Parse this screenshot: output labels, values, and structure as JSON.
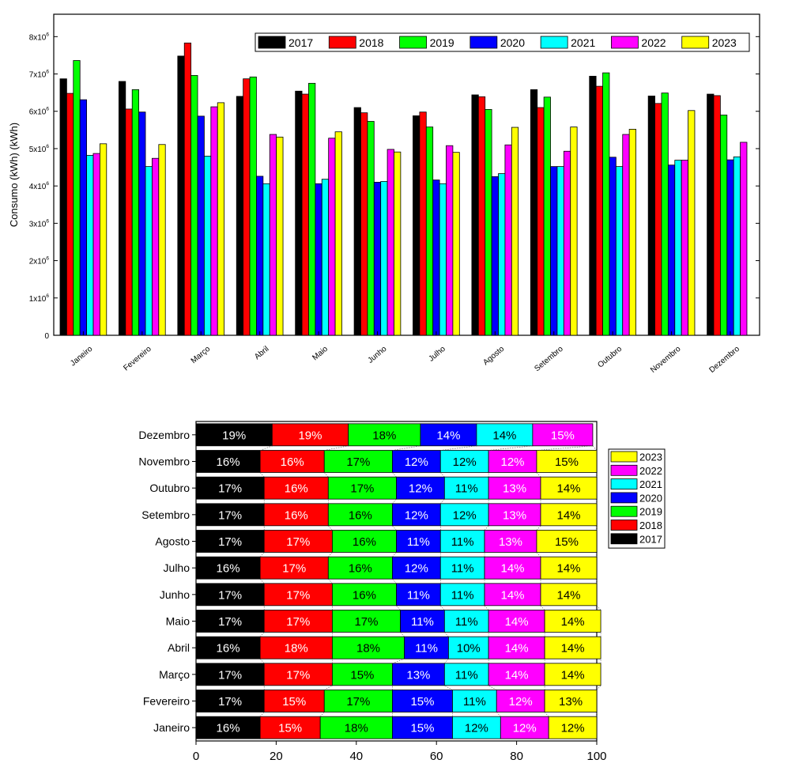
{
  "colors": {
    "2017": "#000000",
    "2018": "#ff0000",
    "2019": "#00ff00",
    "2020": "#0000ff",
    "2021": "#00ffff",
    "2022": "#ff00ff",
    "2023": "#ffff00"
  },
  "chart_data": [
    {
      "type": "bar",
      "ylabel": "Consumo (kWh) (kWh)",
      "ylim": [
        0,
        8600000
      ],
      "y_ticks": [
        0,
        1000000,
        2000000,
        3000000,
        4000000,
        5000000,
        6000000,
        7000000,
        8000000
      ],
      "y_tick_labels": [
        "0",
        "1x10",
        "2x10",
        "3x10",
        "4x10",
        "5x10",
        "6x10",
        "7x10",
        "8x10"
      ],
      "y_tick_exponent": "6",
      "legend_position": "top-right",
      "categories": [
        "Janeiro",
        "Fevereiro",
        "Março",
        "Abril",
        "Maio",
        "Junho",
        "Julho",
        "Agosto",
        "Setembro",
        "Outubro",
        "Novembro",
        "Dezembro"
      ],
      "series": [
        {
          "name": "2017",
          "values": [
            6870000,
            6800000,
            7480000,
            6400000,
            6540000,
            6100000,
            5880000,
            6440000,
            6580000,
            6940000,
            6410000,
            6460000
          ]
        },
        {
          "name": "2018",
          "values": [
            6480000,
            6060000,
            7830000,
            6870000,
            6460000,
            5960000,
            5980000,
            6390000,
            6100000,
            6670000,
            6210000,
            6420000
          ]
        },
        {
          "name": "2019",
          "values": [
            7360000,
            6580000,
            6960000,
            6920000,
            6750000,
            5730000,
            5580000,
            6050000,
            6380000,
            7030000,
            6490000,
            5900000
          ]
        },
        {
          "name": "2020",
          "values": [
            6310000,
            5980000,
            5870000,
            4260000,
            4060000,
            4100000,
            4160000,
            4250000,
            4520000,
            4770000,
            4560000,
            4700000
          ]
        },
        {
          "name": "2021",
          "values": [
            4820000,
            4520000,
            4800000,
            4060000,
            4180000,
            4120000,
            4060000,
            4330000,
            4520000,
            4520000,
            4690000,
            4780000
          ]
        },
        {
          "name": "2022",
          "values": [
            4870000,
            4740000,
            6120000,
            5380000,
            5280000,
            4980000,
            5080000,
            5100000,
            4930000,
            5380000,
            4690000,
            5170000
          ]
        },
        {
          "name": "2023",
          "values": [
            5130000,
            5110000,
            6230000,
            5310000,
            5450000,
            4910000,
            4900000,
            5570000,
            5580000,
            5520000,
            6020000,
            null
          ]
        }
      ]
    },
    {
      "type": "bar",
      "orientation": "horizontal",
      "stacked": "percent",
      "xlim": [
        0,
        100
      ],
      "x_ticks": [
        0,
        20,
        40,
        60,
        80,
        100
      ],
      "legend_position": "right",
      "categories": [
        "Janeiro",
        "Fevereiro",
        "Março",
        "Abril",
        "Maio",
        "Junho",
        "Julho",
        "Agosto",
        "Setembro",
        "Outubro",
        "Novembro",
        "Dezembro"
      ],
      "series": [
        {
          "name": "2017",
          "values": [
            16,
            17,
            17,
            16,
            17,
            17,
            16,
            17,
            17,
            17,
            16,
            19
          ],
          "labels": [
            "16%",
            "17%",
            "17%",
            "16%",
            "17%",
            "17%",
            "16%",
            "17%",
            "17%",
            "17%",
            "16%",
            "19%"
          ]
        },
        {
          "name": "2018",
          "values": [
            15,
            15,
            17,
            18,
            17,
            17,
            17,
            17,
            16,
            16,
            16,
            19
          ],
          "labels": [
            "15%",
            "15%",
            "17%",
            "18%",
            "17%",
            "17%",
            "17%",
            "17%",
            "16%",
            "16%",
            "16%",
            "19%"
          ]
        },
        {
          "name": "2019",
          "values": [
            18,
            17,
            15,
            18,
            17,
            16,
            16,
            16,
            16,
            17,
            17,
            18
          ],
          "labels": [
            "18%",
            "17%",
            "15%",
            "18%",
            "17%",
            "16%",
            "16%",
            "16%",
            "16%",
            "17%",
            "17%",
            "18%"
          ]
        },
        {
          "name": "2020",
          "values": [
            15,
            15,
            13,
            11,
            11,
            11,
            12,
            11,
            12,
            12,
            12,
            14
          ],
          "labels": [
            "15%",
            "15%",
            "13%",
            "11%",
            "11%",
            "11%",
            "12%",
            "11%",
            "12%",
            "12%",
            "12%",
            "14%"
          ]
        },
        {
          "name": "2021",
          "values": [
            12,
            11,
            11,
            10,
            11,
            11,
            11,
            11,
            12,
            11,
            12,
            14
          ],
          "labels": [
            "12%",
            "11%",
            "11%",
            "10%",
            "11%",
            "11%",
            "11%",
            "11%",
            "12%",
            "11%",
            "12%",
            "14%"
          ]
        },
        {
          "name": "2022",
          "values": [
            12,
            12,
            14,
            14,
            14,
            14,
            14,
            13,
            13,
            13,
            12,
            15
          ],
          "labels": [
            "12%",
            "12%",
            "14%",
            "14%",
            "14%",
            "14%",
            "14%",
            "13%",
            "13%",
            "13%",
            "12%",
            "15%"
          ]
        },
        {
          "name": "2023",
          "values": [
            12,
            13,
            14,
            14,
            14,
            14,
            14,
            15,
            14,
            14,
            15,
            0
          ],
          "labels": [
            "12%",
            "13%",
            "14%",
            "14%",
            "14%",
            "14%",
            "14%",
            "15%",
            "14%",
            "14%",
            "15%",
            ""
          ]
        }
      ]
    }
  ]
}
